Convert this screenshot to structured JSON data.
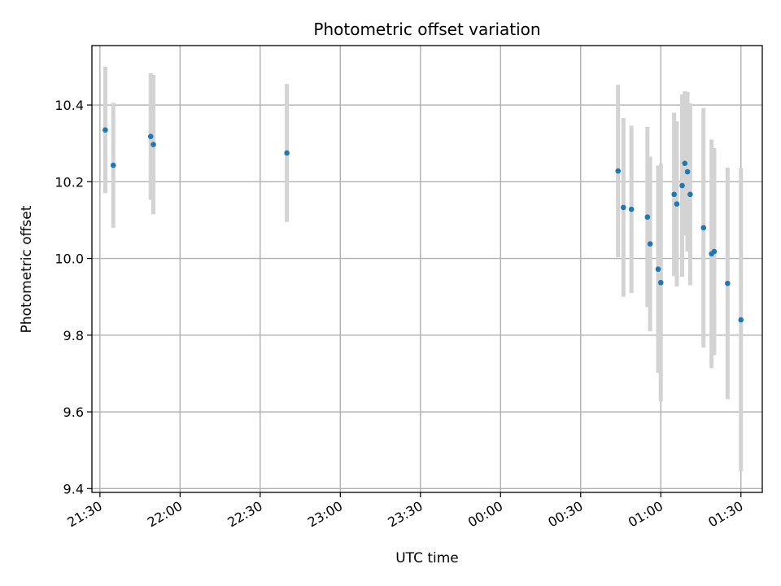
{
  "chart_data": {
    "type": "scatter",
    "title": "Photometric offset variation",
    "xlabel": "UTC time",
    "ylabel": "Photometric offset",
    "x_tick_labels": [
      "21:30",
      "22:00",
      "22:30",
      "23:00",
      "23:30",
      "00:00",
      "00:30",
      "01:00",
      "01:30"
    ],
    "y_ticks": [
      "9.4",
      "9.6",
      "9.8",
      "10.0",
      "10.2",
      "10.4"
    ],
    "xlim": [
      "21:27",
      "01:38"
    ],
    "ylim": [
      9.39,
      10.555
    ],
    "grid": true,
    "colors": {
      "marker": "#1f77b4",
      "errorbar": "#d3d3d3"
    },
    "points": [
      {
        "time": "21:32",
        "y": 10.335,
        "yerr": 0.165
      },
      {
        "time": "21:35",
        "y": 10.243,
        "yerr": 0.163
      },
      {
        "time": "21:49",
        "y": 10.318,
        "yerr": 0.165
      },
      {
        "time": "21:50",
        "y": 10.297,
        "yerr": 0.182
      },
      {
        "time": "22:40",
        "y": 10.275,
        "yerr": 0.18
      },
      {
        "time": "00:44",
        "y": 10.228,
        "yerr": 0.225
      },
      {
        "time": "00:46",
        "y": 10.133,
        "yerr": 0.233
      },
      {
        "time": "00:49",
        "y": 10.128,
        "yerr": 0.218
      },
      {
        "time": "00:55",
        "y": 10.108,
        "yerr": 0.235
      },
      {
        "time": "00:56",
        "y": 10.038,
        "yerr": 0.228
      },
      {
        "time": "00:59",
        "y": 9.972,
        "yerr": 0.27
      },
      {
        "time": "01:00",
        "y": 9.937,
        "yerr": 0.31
      },
      {
        "time": "01:05",
        "y": 10.167,
        "yerr": 0.213
      },
      {
        "time": "01:06",
        "y": 10.142,
        "yerr": 0.215
      },
      {
        "time": "01:08",
        "y": 10.19,
        "yerr": 0.238
      },
      {
        "time": "01:09",
        "y": 10.248,
        "yerr": 0.188
      },
      {
        "time": "01:10",
        "y": 10.226,
        "yerr": 0.208
      },
      {
        "time": "01:11",
        "y": 10.167,
        "yerr": 0.237
      },
      {
        "time": "01:16",
        "y": 10.08,
        "yerr": 0.312
      },
      {
        "time": "01:19",
        "y": 10.012,
        "yerr": 0.298
      },
      {
        "time": "01:20",
        "y": 10.018,
        "yerr": 0.27
      },
      {
        "time": "01:25",
        "y": 9.935,
        "yerr": 0.302
      },
      {
        "time": "01:30",
        "y": 9.84,
        "yerr": 0.395
      }
    ]
  }
}
